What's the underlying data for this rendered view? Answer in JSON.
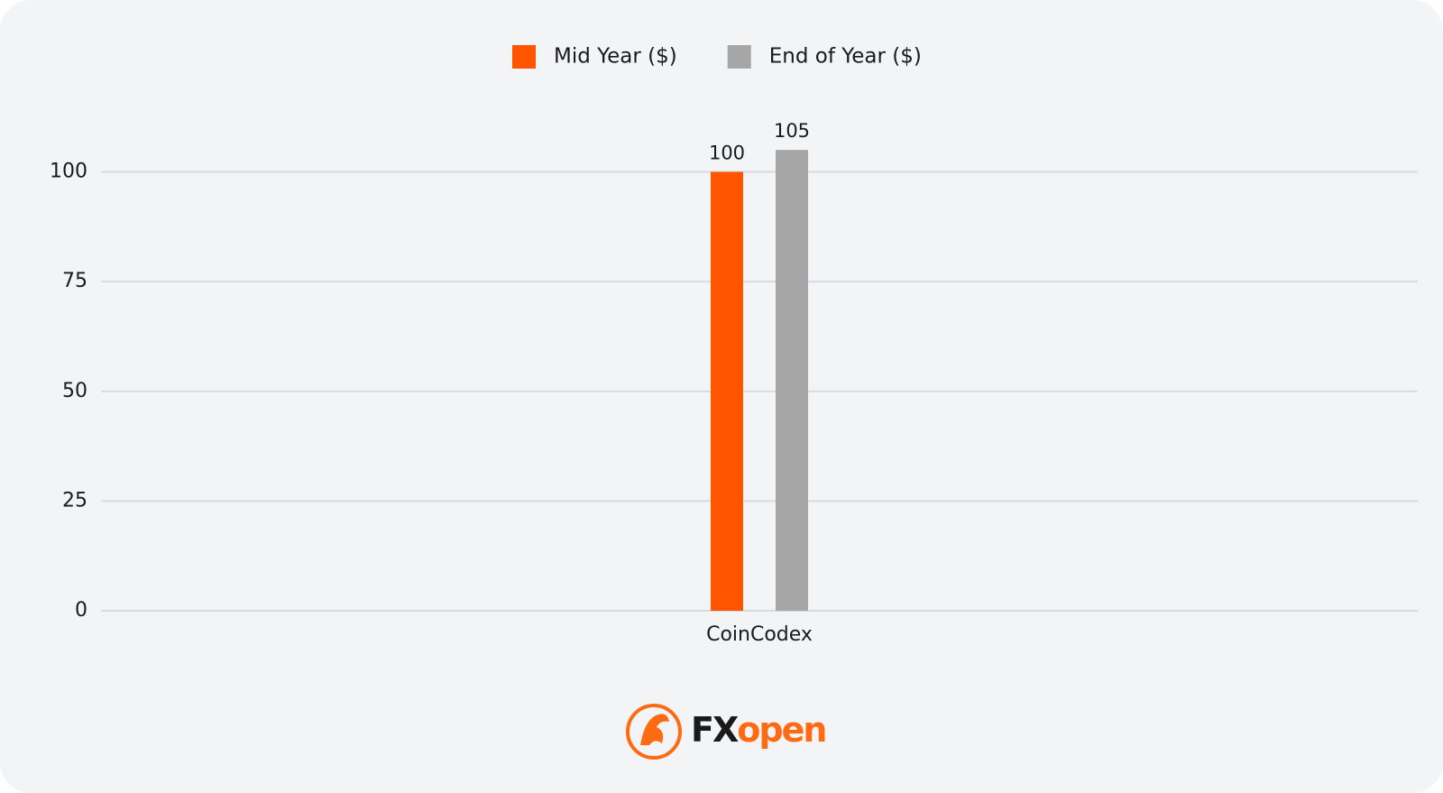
{
  "chart_data": {
    "type": "bar",
    "categories": [
      "CoinCodex"
    ],
    "series": [
      {
        "name": "Mid Year ($)",
        "color": "#ff5500",
        "values": [
          100
        ]
      },
      {
        "name": "End of Year ($)",
        "color": "#a6a6a6",
        "values": [
          105
        ]
      }
    ],
    "ylim": [
      0,
      105
    ],
    "yticks": [
      0,
      25,
      50,
      75,
      100
    ],
    "grid": true,
    "legend": "top"
  },
  "footer": {
    "logo_dark": "FX",
    "logo_orange": "open"
  }
}
